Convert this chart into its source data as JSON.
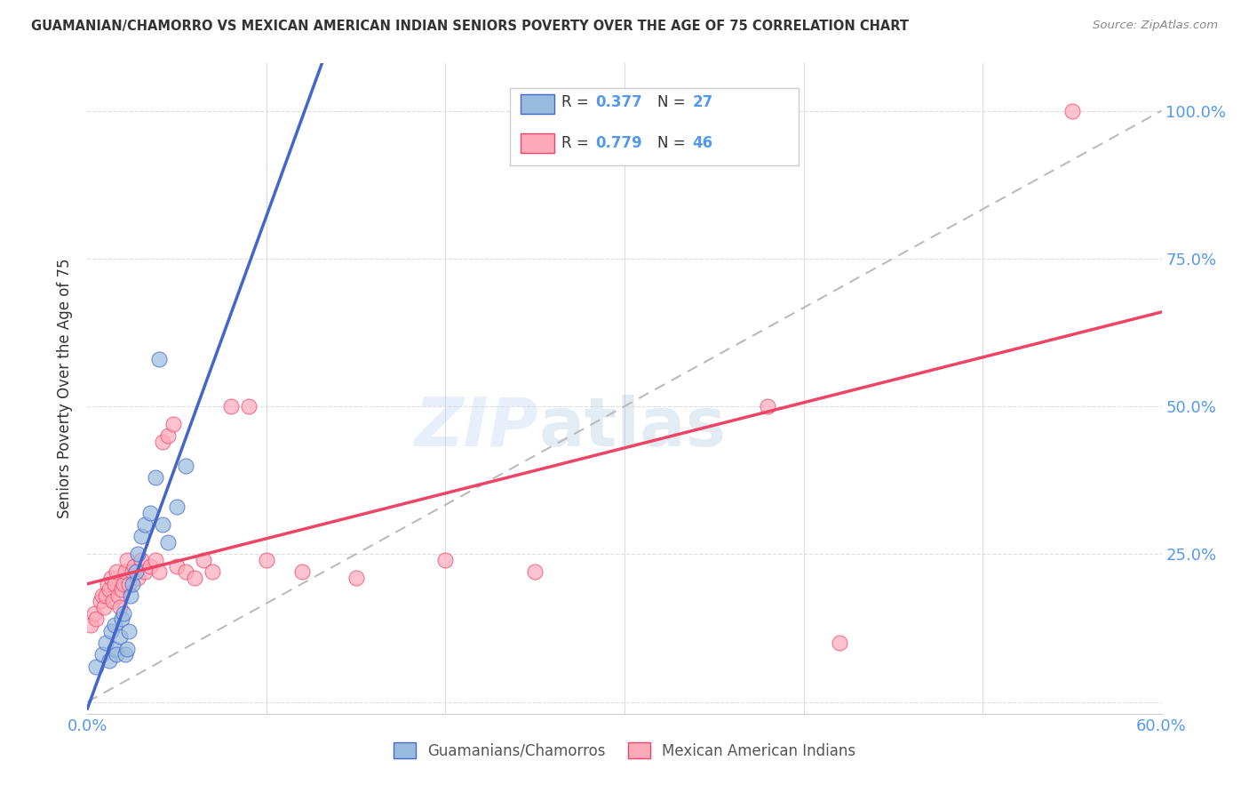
{
  "title": "GUAMANIAN/CHAMORRO VS MEXICAN AMERICAN INDIAN SENIORS POVERTY OVER THE AGE OF 75 CORRELATION CHART",
  "source": "Source: ZipAtlas.com",
  "ylabel_label": "Seniors Poverty Over the Age of 75",
  "xlim": [
    0.0,
    0.6
  ],
  "ylim": [
    -0.02,
    1.08
  ],
  "legend_label1": "Guamanians/Chamorros",
  "legend_label2": "Mexican American Indians",
  "R1": "0.377",
  "N1": "27",
  "R2": "0.779",
  "N2": "46",
  "color_blue": "#99BBDD",
  "color_pink": "#FFAABB",
  "color_blue_line": "#4466CC",
  "color_pink_line": "#EE4466",
  "blue_scatter_x": [
    0.005,
    0.008,
    0.01,
    0.012,
    0.013,
    0.015,
    0.015,
    0.016,
    0.018,
    0.019,
    0.02,
    0.021,
    0.022,
    0.023,
    0.024,
    0.025,
    0.027,
    0.028,
    0.03,
    0.032,
    0.035,
    0.038,
    0.04,
    0.042,
    0.045,
    0.05,
    0.055
  ],
  "blue_scatter_y": [
    0.06,
    0.08,
    0.1,
    0.07,
    0.12,
    0.09,
    0.13,
    0.08,
    0.11,
    0.14,
    0.15,
    0.08,
    0.09,
    0.12,
    0.18,
    0.2,
    0.22,
    0.25,
    0.28,
    0.3,
    0.32,
    0.38,
    0.58,
    0.3,
    0.27,
    0.33,
    0.4
  ],
  "pink_scatter_x": [
    0.002,
    0.004,
    0.005,
    0.007,
    0.008,
    0.009,
    0.01,
    0.011,
    0.012,
    0.013,
    0.014,
    0.015,
    0.016,
    0.017,
    0.018,
    0.019,
    0.02,
    0.021,
    0.022,
    0.023,
    0.025,
    0.026,
    0.028,
    0.03,
    0.032,
    0.035,
    0.038,
    0.04,
    0.042,
    0.045,
    0.048,
    0.05,
    0.055,
    0.06,
    0.065,
    0.07,
    0.08,
    0.09,
    0.1,
    0.12,
    0.15,
    0.2,
    0.25,
    0.38,
    0.42,
    0.55
  ],
  "pink_scatter_y": [
    0.13,
    0.15,
    0.14,
    0.17,
    0.18,
    0.16,
    0.18,
    0.2,
    0.19,
    0.21,
    0.17,
    0.2,
    0.22,
    0.18,
    0.16,
    0.19,
    0.2,
    0.22,
    0.24,
    0.2,
    0.22,
    0.23,
    0.21,
    0.24,
    0.22,
    0.23,
    0.24,
    0.22,
    0.44,
    0.45,
    0.47,
    0.23,
    0.22,
    0.21,
    0.24,
    0.22,
    0.5,
    0.5,
    0.24,
    0.22,
    0.21,
    0.24,
    0.22,
    0.5,
    0.1,
    1.0
  ],
  "watermark_zip": "ZIP",
  "watermark_atlas": "atlas",
  "background_color": "#FFFFFF",
  "grid_color": "#DDDDDD",
  "axis_color": "#CCCCCC",
  "tick_color": "#5599EE",
  "text_color": "#333333",
  "source_color": "#888888"
}
